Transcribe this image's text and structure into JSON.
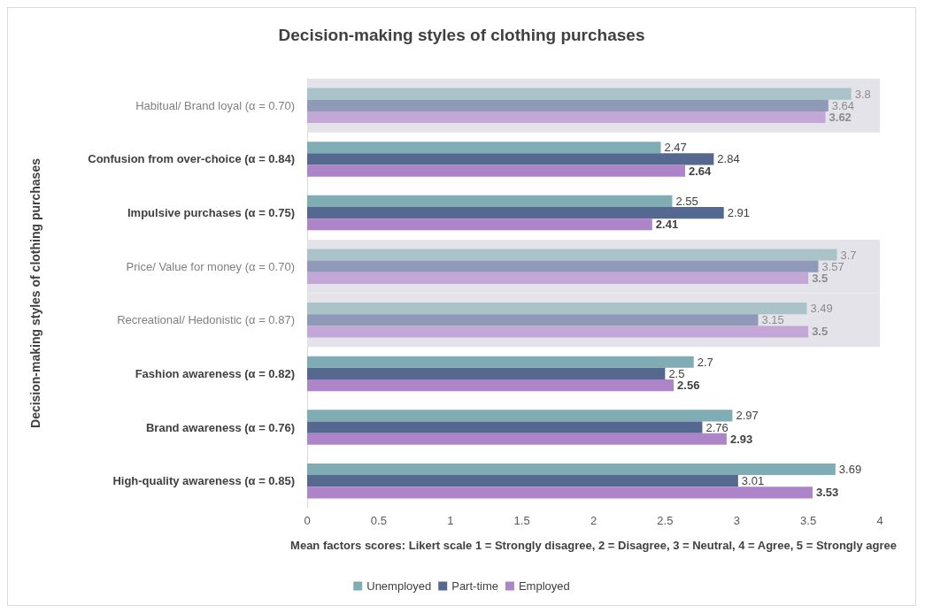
{
  "chart_data": {
    "type": "bar",
    "orientation": "horizontal",
    "title": "Decision-making styles of clothing purchases",
    "xlabel": "Mean factors scores: Likert scale 1 = Strongly disagree, 2 = Disagree, 3 = Neutral, 4 = Agree, 5 = Strongly agree",
    "ylabel": "Decision-making styles of clothing purchases",
    "categories": [
      "Habitual/ Brand loyal (α = 0.70)",
      "Confusion from over-choice (α = 0.84)",
      "Impulsive purchases (α = 0.75)",
      "Price/ Value for money (α = 0.70)",
      "Recreational/ Hedonistic (α = 0.87)",
      "Fashion awareness (α = 0.82)",
      "Brand awareness (α = 0.76)",
      "High-quality awareness (α = 0.85)"
    ],
    "series": [
      {
        "name": "Unemployed",
        "color": "#7fadb3",
        "colors": [
          "#a9c3c8",
          "#7fadb3",
          "#7fadb3",
          "#a9c3c8",
          "#a9c3c8",
          "#7fadb3",
          "#7fadb3",
          "#7fadb3"
        ],
        "values": [
          3.8,
          2.47,
          2.55,
          3.7,
          3.49,
          2.7,
          2.97,
          3.69
        ]
      },
      {
        "name": "Part-time",
        "color": "#55688f",
        "colors": [
          "#8e9ab7",
          "#55688f",
          "#55688f",
          "#8e9ab7",
          "#8e9ab7",
          "#55688f",
          "#55688f",
          "#55688f"
        ],
        "values": [
          3.64,
          2.84,
          2.91,
          3.57,
          3.15,
          2.5,
          2.76,
          3.01
        ]
      },
      {
        "name": "Employed",
        "color": "#ad84c8",
        "colors": [
          "#c2a7d7",
          "#ad84c8",
          "#ad84c8",
          "#c2a7d7",
          "#c2a7d7",
          "#ad84c8",
          "#ad84c8",
          "#ad84c8"
        ],
        "values": [
          3.62,
          2.64,
          2.41,
          3.5,
          3.5,
          2.56,
          2.93,
          3.53
        ]
      }
    ],
    "bands": [
      {
        "axis": "y",
        "from": "Habitual/ Brand loyal (α = 0.70)",
        "to": "Habitual/ Brand loyal (α = 0.70)",
        "color": "#e4e3ea"
      },
      {
        "axis": "y",
        "from": "Price/ Value for money (α = 0.70)",
        "to": "Price/ Value for money (α = 0.70)",
        "color": "#e4e3ea"
      },
      {
        "axis": "y",
        "from": "Recreational/ Hedonistic (α = 0.87)",
        "to": "Recreational/ Hedonistic (α = 0.87)",
        "color": "#e4e3ea"
      }
    ],
    "xlim": [
      0,
      4
    ],
    "xticks": [
      0,
      0.5,
      1,
      1.5,
      2,
      2.5,
      3,
      3.5,
      4
    ],
    "grid": false,
    "legend": "bottom",
    "data_labels": true
  }
}
